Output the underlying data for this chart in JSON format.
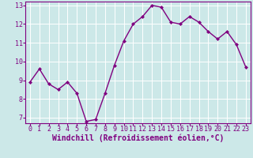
{
  "x": [
    0,
    1,
    2,
    3,
    4,
    5,
    6,
    7,
    8,
    9,
    10,
    11,
    12,
    13,
    14,
    15,
    16,
    17,
    18,
    19,
    20,
    21,
    22,
    23
  ],
  "y": [
    8.9,
    9.6,
    8.8,
    8.5,
    8.9,
    8.3,
    6.8,
    6.9,
    8.3,
    9.8,
    11.1,
    12.0,
    12.4,
    13.0,
    12.9,
    12.1,
    12.0,
    12.4,
    12.1,
    11.6,
    11.2,
    11.6,
    10.9,
    9.7
  ],
  "line_color": "#800080",
  "marker_color": "#800080",
  "bg_color": "#cce8e8",
  "grid_color": "#ffffff",
  "xlabel": "Windchill (Refroidissement éolien,°C)",
  "ylim": [
    6.7,
    13.2
  ],
  "xlim": [
    -0.5,
    23.5
  ],
  "yticks": [
    7,
    8,
    9,
    10,
    11,
    12,
    13
  ],
  "xticks": [
    0,
    1,
    2,
    3,
    4,
    5,
    6,
    7,
    8,
    9,
    10,
    11,
    12,
    13,
    14,
    15,
    16,
    17,
    18,
    19,
    20,
    21,
    22,
    23
  ],
  "spine_color": "#800080",
  "tick_color": "#800080",
  "label_color": "#800080",
  "xlabel_fontsize": 7.0,
  "tick_fontsize": 6.0,
  "linewidth": 1.0,
  "markersize": 2.0
}
